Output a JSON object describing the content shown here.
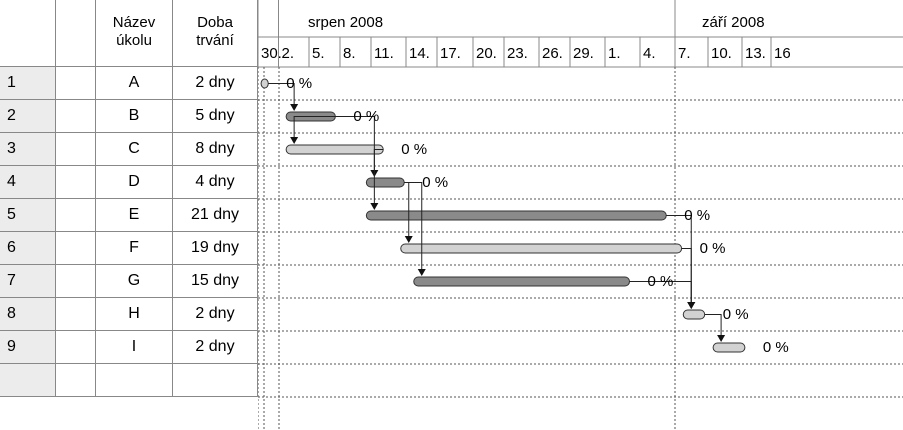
{
  "columns": {
    "info_icon": "info-icon",
    "task_name_line1": "Název",
    "task_name_line2": "úkolu",
    "duration_line1": "Doba",
    "duration_line2": "trvání"
  },
  "months": [
    "srpen 2008",
    "září 2008"
  ],
  "day_ticks": [
    "30.",
    "2.",
    "5.",
    "8.",
    "11.",
    "14.",
    "17.",
    "20.",
    "23.",
    "26.",
    "29.",
    "1.",
    "4.",
    "7.",
    "10.",
    "13.",
    "16"
  ],
  "tasks": [
    {
      "id": "1",
      "name": "A",
      "duration": "2 dny",
      "progress": "0 %",
      "start_col": 0.15,
      "end_col": 0.5,
      "shade": "light"
    },
    {
      "id": "2",
      "name": "B",
      "duration": "5 dny",
      "progress": "0 %",
      "start_col": 1.25,
      "end_col": 2.85,
      "shade": "dark"
    },
    {
      "id": "3",
      "name": "C",
      "duration": "8 dny",
      "progress": "0 %",
      "start_col": 1.25,
      "end_col": 4.35,
      "shade": "light"
    },
    {
      "id": "4",
      "name": "D",
      "duration": "4 dny",
      "progress": "0 %",
      "start_col": 3.85,
      "end_col": 4.95,
      "shade": "dark"
    },
    {
      "id": "5",
      "name": "E",
      "duration": "21 dny",
      "progress": "0 %",
      "start_col": 3.85,
      "end_col": 12.75,
      "shade": "dark"
    },
    {
      "id": "6",
      "name": "F",
      "duration": "19 dny",
      "progress": "0 %",
      "start_col": 4.85,
      "end_col": 13.2,
      "shade": "light"
    },
    {
      "id": "7",
      "name": "G",
      "duration": "15 dny",
      "progress": "0 %",
      "start_col": 5.25,
      "end_col": 11.7,
      "shade": "dark"
    },
    {
      "id": "8",
      "name": "H",
      "duration": "2 dny",
      "progress": "0 %",
      "start_col": 13.25,
      "end_col": 13.9,
      "shade": "light"
    },
    {
      "id": "9",
      "name": "I",
      "duration": "2 dny",
      "progress": "0 %",
      "start_col": 14.15,
      "end_col": 15.1,
      "shade": "light"
    }
  ],
  "colors": {
    "bar_dark": "#8a8a8a",
    "bar_light": "#d2d2d2",
    "grid_line": "#888888",
    "row_number_bg": "#ececec"
  }
}
